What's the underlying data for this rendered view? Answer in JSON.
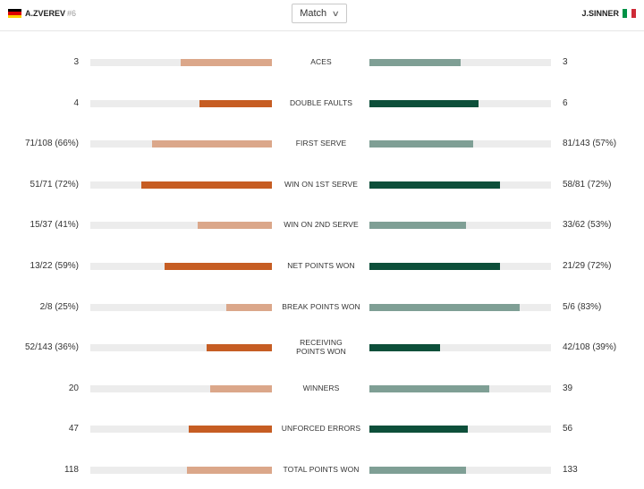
{
  "header": {
    "left_player": "A.ZVEREV",
    "left_seed": "#6",
    "right_player": "J.SINNER",
    "period_select": "Match"
  },
  "colors": {
    "left_light": "#dba78a",
    "left_dark": "#c65d23",
    "right_light": "#7f9f95",
    "right_dark": "#0d4f3a",
    "track": "#ececec"
  },
  "stats": [
    {
      "label": "ACES",
      "left": "3",
      "right": "3",
      "left_share": 0.5,
      "right_share": 0.5
    },
    {
      "label": "DOUBLE FAULTS",
      "left": "4",
      "right": "6",
      "left_share": 0.4,
      "right_share": 0.6
    },
    {
      "label": "FIRST SERVE",
      "left": "71/108 (66%)",
      "right": "81/143 (57%)",
      "left_share": 0.66,
      "right_share": 0.57
    },
    {
      "label": "WIN ON 1ST SERVE",
      "left": "51/71 (72%)",
      "right": "58/81 (72%)",
      "left_share": 0.72,
      "right_share": 0.72
    },
    {
      "label": "WIN ON 2ND SERVE",
      "left": "15/37 (41%)",
      "right": "33/62 (53%)",
      "left_share": 0.41,
      "right_share": 0.53
    },
    {
      "label": "NET POINTS WON",
      "left": "13/22 (59%)",
      "right": "21/29 (72%)",
      "left_share": 0.59,
      "right_share": 0.72
    },
    {
      "label": "BREAK POINTS WON",
      "left": "2/8 (25%)",
      "right": "5/6 (83%)",
      "left_share": 0.25,
      "right_share": 0.83
    },
    {
      "label": "RECEIVING POINTS WON",
      "left": "52/143 (36%)",
      "right": "42/108 (39%)",
      "left_share": 0.36,
      "right_share": 0.39
    },
    {
      "label": "WINNERS",
      "left": "20",
      "right": "39",
      "left_share": 0.34,
      "right_share": 0.66
    },
    {
      "label": "UNFORCED ERRORS",
      "left": "47",
      "right": "56",
      "left_share": 0.46,
      "right_share": 0.54
    },
    {
      "label": "TOTAL POINTS WON",
      "left": "118",
      "right": "133",
      "left_share": 0.47,
      "right_share": 0.53
    }
  ]
}
